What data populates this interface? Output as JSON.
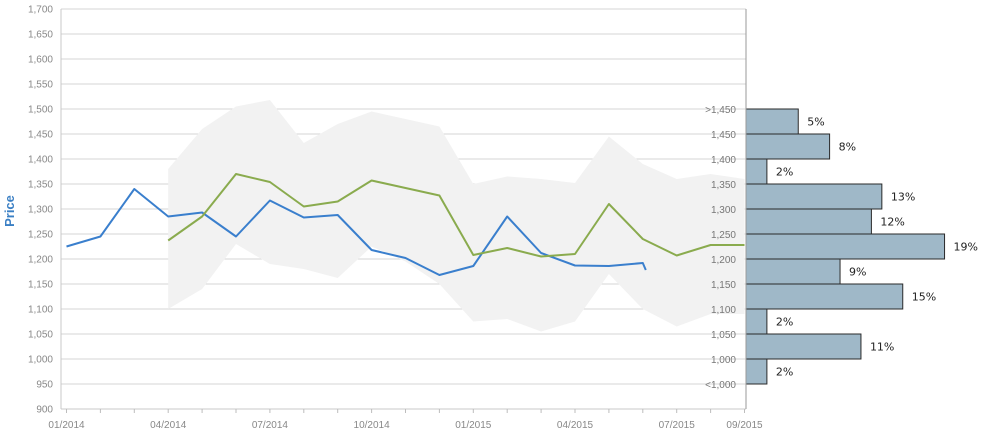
{
  "chart_data": {
    "type": "line",
    "ylabel": "Price",
    "xlabel": "",
    "ylim": [
      900,
      1700
    ],
    "y_ticks": [
      "900",
      "950",
      "1,000",
      "1,050",
      "1,100",
      "1,150",
      "1,200",
      "1,250",
      "1,300",
      "1,350",
      "1,400",
      "1,450",
      "1,500",
      "1,550",
      "1,600",
      "1,650",
      "1,700"
    ],
    "x_tick_labels": [
      "01/2014",
      "04/2014",
      "07/2014",
      "10/2014",
      "01/2015",
      "04/2015",
      "07/2015",
      "09/2015"
    ],
    "grid": true,
    "series": [
      {
        "color": "#3a7fcd",
        "x": [
          "01/2014",
          "02/2014",
          "03/2014",
          "04/2014",
          "05/2014",
          "06/2014",
          "07/2014",
          "08/2014",
          "09/2014",
          "10/2014",
          "11/2014",
          "12/2014",
          "01/2015",
          "02/2015",
          "03/2015",
          "04/2015",
          "05/2015",
          "06/2015",
          "06/2015"
        ],
        "values": [
          1225,
          1245,
          1340,
          1285,
          1293,
          1245,
          1317,
          1283,
          1288,
          1218,
          1202,
          1168,
          1186,
          1285,
          1212,
          1187,
          1186,
          1192,
          1178
        ]
      },
      {
        "color": "#8aab4e",
        "x": [
          "04/2014",
          "05/2014",
          "06/2014",
          "07/2014",
          "08/2014",
          "09/2014",
          "10/2014",
          "11/2014",
          "12/2014",
          "01/2015",
          "02/2015",
          "03/2015",
          "04/2015",
          "05/2015",
          "06/2015",
          "07/2015",
          "08/2015",
          "09/2015"
        ],
        "values": [
          1237,
          1285,
          1370,
          1354,
          1305,
          1315,
          1357,
          1342,
          1327,
          1208,
          1222,
          1205,
          1210,
          1310,
          1240,
          1207,
          1228,
          1228
        ]
      }
    ],
    "band": {
      "color": "#f2f2f2",
      "x": [
        "04/2014",
        "05/2014",
        "06/2014",
        "07/2014",
        "08/2014",
        "09/2014",
        "10/2014",
        "11/2014",
        "12/2014",
        "01/2015",
        "02/2015",
        "03/2015",
        "04/2015",
        "05/2015",
        "06/2015",
        "07/2015",
        "08/2015",
        "09/2015"
      ],
      "upper": [
        1380,
        1460,
        1505,
        1518,
        1432,
        1470,
        1495,
        1480,
        1465,
        1350,
        1365,
        1360,
        1352,
        1445,
        1390,
        1360,
        1370,
        1360
      ],
      "lower": [
        1100,
        1140,
        1230,
        1190,
        1180,
        1162,
        1225,
        1195,
        1150,
        1075,
        1080,
        1055,
        1075,
        1170,
        1100,
        1065,
        1090,
        1090
      ]
    },
    "histogram": {
      "color": "#9fb8c8",
      "bins": [
        {
          "label": ">1,450",
          "pct": 5,
          "text": "5%"
        },
        {
          "label": "1,450",
          "pct": 8,
          "text": "8%"
        },
        {
          "label": "1,400",
          "pct": 2,
          "text": "2%"
        },
        {
          "label": "1,350",
          "pct": 13,
          "text": "13%"
        },
        {
          "label": "1,300",
          "pct": 12,
          "text": "12%"
        },
        {
          "label": "1,250",
          "pct": 19,
          "text": "19%"
        },
        {
          "label": "1,200",
          "pct": 9,
          "text": "9%"
        },
        {
          "label": "1,150",
          "pct": 15,
          "text": "15%"
        },
        {
          "label": "1,100",
          "pct": 2,
          "text": "2%"
        },
        {
          "label": "1,050",
          "pct": 11,
          "text": "11%"
        },
        {
          "label": "1,000",
          "pct": 2,
          "text": "2%"
        },
        {
          "label": "<1,000",
          "pct": 0,
          "text": ""
        }
      ]
    }
  }
}
